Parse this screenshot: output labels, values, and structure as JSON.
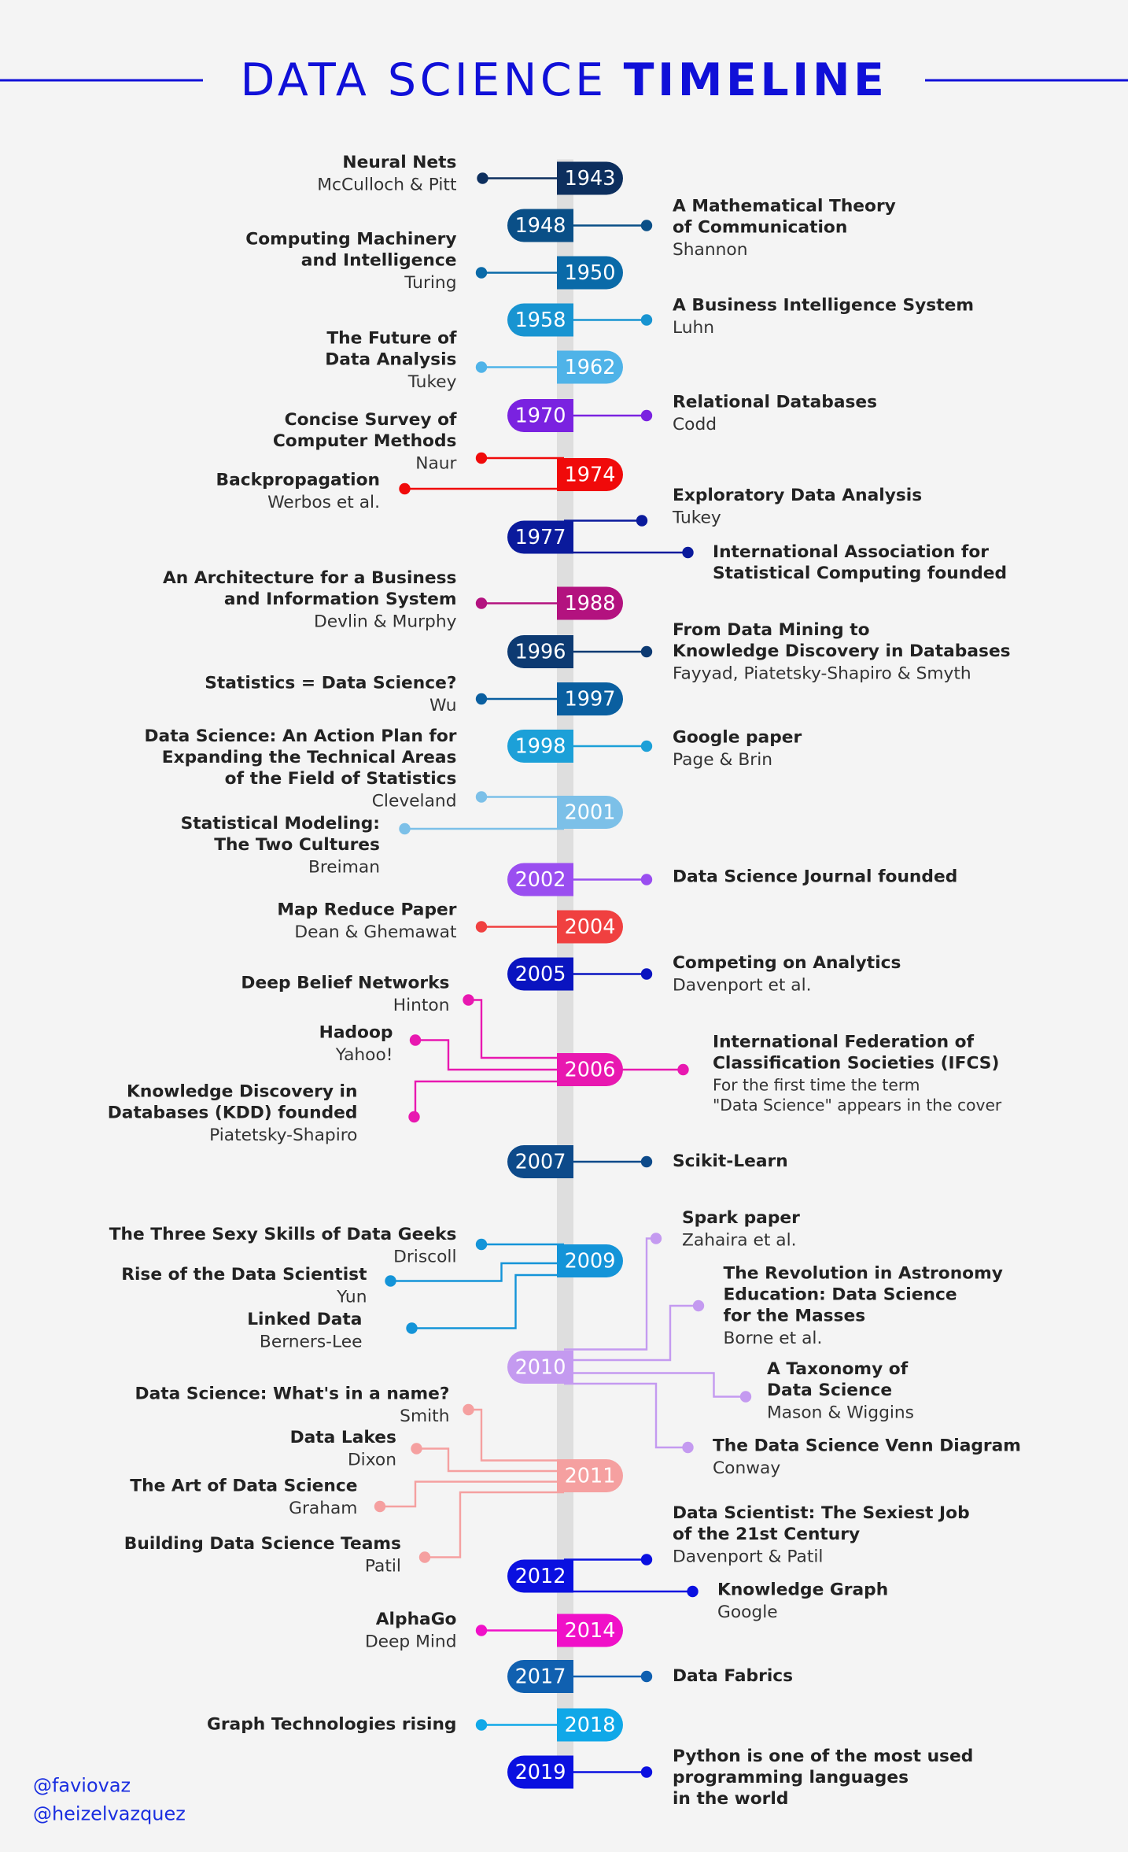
{
  "title": {
    "light": "DATA SCIENCE",
    "bold": "TIMELINE"
  },
  "events": [
    {
      "year": "1943",
      "color": "#0d2f5e",
      "entries": [
        {
          "title": [
            "Neural Nets"
          ],
          "subtitle": [
            "McCulloch & Pitt"
          ]
        }
      ]
    },
    {
      "year": "1948",
      "color": "#0a4f87",
      "entries": [
        {
          "title": [
            "A Mathematical Theory",
            "of Communication"
          ],
          "subtitle": [
            "Shannon"
          ]
        }
      ]
    },
    {
      "year": "1950",
      "color": "#0a6aa8",
      "entries": [
        {
          "title": [
            "Computing Machinery",
            "and Intelligence"
          ],
          "subtitle": [
            "Turing"
          ]
        }
      ]
    },
    {
      "year": "1958",
      "color": "#1894d1",
      "entries": [
        {
          "title": [
            "A Business Intelligence System"
          ],
          "subtitle": [
            "Luhn"
          ]
        }
      ]
    },
    {
      "year": "1962",
      "color": "#4fb3e8",
      "entries": [
        {
          "title": [
            "The Future of",
            "Data Analysis"
          ],
          "subtitle": [
            "Tukey"
          ]
        }
      ]
    },
    {
      "year": "1970",
      "color": "#7a22e0",
      "entries": [
        {
          "title": [
            "Relational Databases"
          ],
          "subtitle": [
            "Codd"
          ]
        }
      ]
    },
    {
      "year": "1974",
      "color": "#f00a0a",
      "entries": [
        {
          "title": [
            "Concise Survey of",
            "Computer Methods"
          ],
          "subtitle": [
            "Naur"
          ]
        },
        {
          "title": [
            "Backpropagation"
          ],
          "subtitle": [
            "Werbos et al."
          ]
        }
      ]
    },
    {
      "year": "1977",
      "color": "#0a1a9c",
      "entries": [
        {
          "title": [
            "Exploratory Data Analysis"
          ],
          "subtitle": [
            "Tukey"
          ]
        },
        {
          "title": [
            "International Association for",
            "Statistical Computing founded"
          ]
        }
      ]
    },
    {
      "year": "1988",
      "color": "#b3127f",
      "entries": [
        {
          "title": [
            "An Architecture for a Business",
            "and Information System"
          ],
          "subtitle": [
            "Devlin & Murphy"
          ]
        }
      ]
    },
    {
      "year": "1996",
      "color": "#0d3a72",
      "entries": [
        {
          "title": [
            "From Data Mining to",
            "Knowledge Discovery in Databases"
          ],
          "subtitle": [
            "Fayyad, Piatetsky-Shapiro & Smyth"
          ]
        }
      ]
    },
    {
      "year": "1997",
      "color": "#0a5fa0",
      "entries": [
        {
          "title": [
            "Statistics = Data Science?"
          ],
          "subtitle": [
            "Wu"
          ]
        }
      ]
    },
    {
      "year": "1998",
      "color": "#1ca0d8",
      "entries": [
        {
          "title": [
            "Google paper"
          ],
          "subtitle": [
            "Page & Brin"
          ]
        }
      ]
    },
    {
      "year": "2001",
      "color": "#7cc0e8",
      "entries": [
        {
          "title": [
            "Data Science: An Action Plan for",
            "Expanding the Technical Areas",
            "of the Field of Statistics"
          ],
          "subtitle": [
            "Cleveland"
          ]
        },
        {
          "title": [
            "Statistical Modeling:",
            "The Two Cultures"
          ],
          "subtitle": [
            "Breiman"
          ]
        }
      ]
    },
    {
      "year": "2002",
      "color": "#9a4ef0",
      "entries": [
        {
          "title": [
            "Data Science Journal founded"
          ]
        }
      ]
    },
    {
      "year": "2004",
      "color": "#f04040",
      "entries": [
        {
          "title": [
            "Map Reduce Paper"
          ],
          "subtitle": [
            "Dean & Ghemawat"
          ]
        }
      ]
    },
    {
      "year": "2005",
      "color": "#0a14c0",
      "entries": [
        {
          "title": [
            "Competing on Analytics"
          ],
          "subtitle": [
            "Davenport et al."
          ]
        }
      ]
    },
    {
      "year": "2006",
      "color": "#e818b0",
      "entries": [
        {
          "title": [
            "Deep Belief Networks"
          ],
          "subtitle": [
            "Hinton"
          ]
        },
        {
          "title": [
            "Hadoop"
          ],
          "subtitle": [
            "Yahoo!"
          ]
        },
        {
          "title": [
            "Knowledge Discovery in",
            "Databases (KDD) founded"
          ],
          "subtitle": [
            "Piatetsky-Shapiro"
          ]
        },
        {
          "title": [
            "International Federation of",
            "Classification Societies (IFCS)"
          ],
          "subtitle": [
            "For the first time the term",
            "\"Data Science\" appears in the cover"
          ]
        }
      ]
    },
    {
      "year": "2007",
      "color": "#0d4a8a",
      "entries": [
        {
          "title": [
            "Scikit-Learn"
          ]
        }
      ]
    },
    {
      "year": "2009",
      "color": "#1494d8",
      "entries": [
        {
          "title": [
            "The Three Sexy Skills of Data Geeks"
          ],
          "subtitle": [
            "Driscoll"
          ]
        },
        {
          "title": [
            "Rise of the Data Scientist"
          ],
          "subtitle": [
            "Yun"
          ]
        },
        {
          "title": [
            "Linked Data"
          ],
          "subtitle": [
            "Berners-Lee"
          ]
        }
      ]
    },
    {
      "year": "2010",
      "color": "#c49af0",
      "entries": [
        {
          "title": [
            "Spark paper"
          ],
          "subtitle": [
            "Zahaira et al."
          ]
        },
        {
          "title": [
            "The Revolution in Astronomy",
            "Education: Data Science",
            "for the Masses"
          ],
          "subtitle": [
            "Borne et al."
          ]
        },
        {
          "title": [
            "A Taxonomy of",
            "Data Science"
          ],
          "subtitle": [
            "Mason & Wiggins"
          ]
        },
        {
          "title": [
            "The Data Science Venn Diagram"
          ],
          "subtitle": [
            "Conway"
          ]
        }
      ]
    },
    {
      "year": "2011",
      "color": "#f5a0a0",
      "entries": [
        {
          "title": [
            "Data Science:  What's in a name?"
          ],
          "subtitle": [
            "Smith"
          ]
        },
        {
          "title": [
            "Data Lakes"
          ],
          "subtitle": [
            "Dixon"
          ]
        },
        {
          "title": [
            "The Art of Data Science"
          ],
          "subtitle": [
            "Graham"
          ]
        },
        {
          "title": [
            "Building Data Science Teams"
          ],
          "subtitle": [
            "Patil"
          ]
        }
      ]
    },
    {
      "year": "2012",
      "color": "#0a10e0",
      "entries": [
        {
          "title": [
            "Data Scientist: The Sexiest Job",
            "of the 21st Century"
          ],
          "subtitle": [
            "Davenport & Patil"
          ]
        },
        {
          "title": [
            "Knowledge Graph"
          ],
          "subtitle": [
            "Google"
          ]
        }
      ]
    },
    {
      "year": "2014",
      "color": "#f010c8",
      "entries": [
        {
          "title": [
            "AlphaGo"
          ],
          "subtitle": [
            "Deep Mind"
          ]
        }
      ]
    },
    {
      "year": "2017",
      "color": "#1060b0",
      "entries": [
        {
          "title": [
            "Data Fabrics"
          ]
        }
      ]
    },
    {
      "year": "2018",
      "color": "#10a8e8",
      "entries": [
        {
          "title": [
            "Graph Technologies rising"
          ]
        }
      ]
    },
    {
      "year": "2019",
      "color": "#0a10e0",
      "entries": [
        {
          "title": [
            "Python is one of the most used",
            "programming languages",
            "in the world"
          ]
        }
      ]
    }
  ],
  "credits": [
    "@faviovaz",
    "@heizelvazquez"
  ]
}
